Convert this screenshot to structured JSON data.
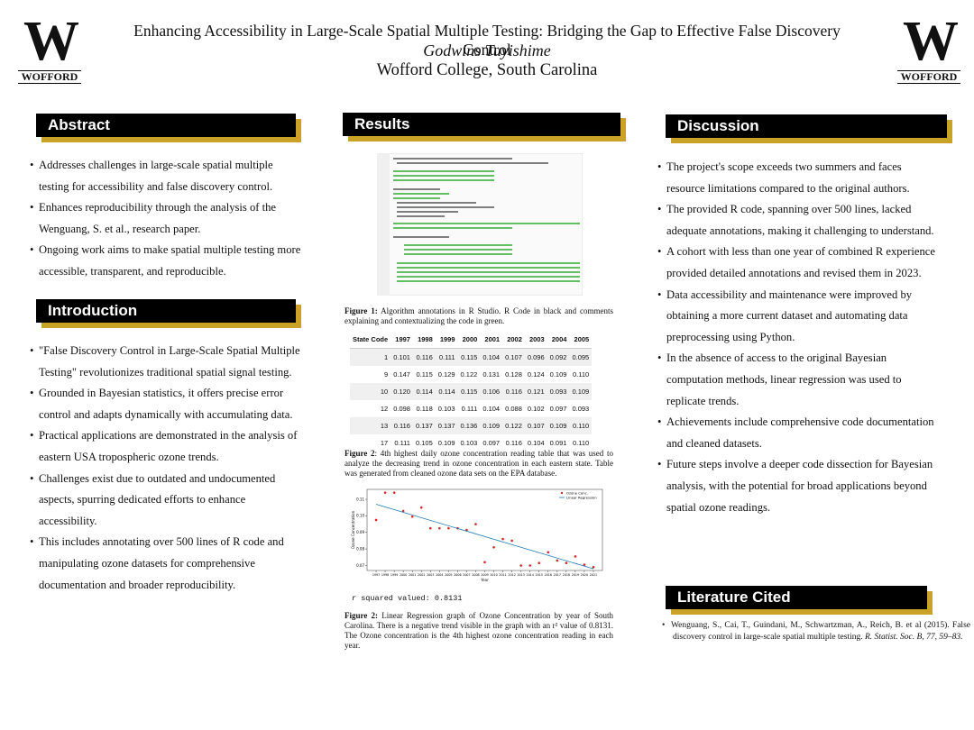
{
  "header": {
    "logo_letter": "W",
    "logo_name": "WOFFORD",
    "title": "Enhancing Accessibility in Large-Scale Spatial Multiple Testing: Bridging the Gap to Effective False Discovery Control",
    "author": "Godwins Tuyishime",
    "affiliation": "Wofford College, South Carolina"
  },
  "abstract": {
    "heading": "Abstract",
    "bullets": [
      "Addresses challenges in large-scale spatial multiple testing for accessibility and false discovery control.",
      "Enhances reproducibility through the analysis of the Wenguang, S. et al., research paper.",
      "Ongoing work aims to make spatial multiple testing more accessible, transparent, and reproducible."
    ]
  },
  "introduction": {
    "heading": "Introduction",
    "bullets": [
      "\"False Discovery Control in Large-Scale Spatial Multiple Testing\" revolutionizes traditional spatial signal testing.",
      "Grounded in Bayesian statistics, it offers precise error control and adapts dynamically with accumulating data.",
      "Practical applications are demonstrated in the analysis of eastern USA tropospheric ozone trends.",
      "Challenges exist due to outdated and undocumented aspects, spurring dedicated efforts to enhance accessibility.",
      "This includes annotating over 500 lines of R code and manipulating ozone datasets for comprehensive documentation and broader reproducibility."
    ]
  },
  "results": {
    "heading": "Results",
    "figure1_caption": {
      "label": "Figure 1:",
      "text": "Algorithm annotations in R Studio. R Code in black and comments explaining and contextualizing the code in green."
    },
    "table": {
      "header": [
        "State Code",
        "1997",
        "1998",
        "1999",
        "2000",
        "2001",
        "2002",
        "2003",
        "2004",
        "2005"
      ],
      "rows": [
        [
          "1",
          "0.101",
          "0.116",
          "0.111",
          "0.115",
          "0.104",
          "0.107",
          "0.096",
          "0.092",
          "0.095"
        ],
        [
          "9",
          "0.147",
          "0.115",
          "0.129",
          "0.122",
          "0.131",
          "0.128",
          "0.124",
          "0.109",
          "0.110"
        ],
        [
          "10",
          "0.120",
          "0.114",
          "0.114",
          "0.115",
          "0.106",
          "0.116",
          "0.121",
          "0.093",
          "0.109"
        ],
        [
          "12",
          "0.098",
          "0.118",
          "0.103",
          "0.111",
          "0.104",
          "0.088",
          "0.102",
          "0.097",
          "0.093"
        ],
        [
          "13",
          "0.116",
          "0.137",
          "0.137",
          "0.136",
          "0.109",
          "0.122",
          "0.107",
          "0.109",
          "0.110"
        ],
        [
          "17",
          "0.111",
          "0.105",
          "0.109",
          "0.103",
          "0.097",
          "0.116",
          "0.104",
          "0.091",
          "0.110"
        ]
      ]
    },
    "table_caption": {
      "label": "Figure 2",
      "text": ": 4th highest daily ozone concentration reading table that was used to analyze the decreasing trend in ozone concentration in each eastern state. Table was generated from cleaned ozone data sets on the EPA database."
    },
    "r_squared": "r squared valued: 0.8131",
    "figure2_caption": {
      "label": "Figure 2:",
      "text": "Linear Regression graph of  Ozone Concentration by year of South Carolina. There is a negative trend visible in the graph with an r² value of 0.8131. The Ozone concentration is the 4th highest ozone concentration reading in each year."
    }
  },
  "discussion": {
    "heading": "Discussion",
    "bullets": [
      "The project's scope exceeds two summers and faces resource limitations compared to the original authors.",
      "The provided R code, spanning over 500 lines, lacked adequate annotations, making it challenging to understand.",
      "A cohort with less than one year of combined R experience provided detailed annotations and revised them in 2023.",
      "Data accessibility and maintenance were improved by obtaining a more current dataset and automating data preprocessing using Python.",
      "In the absence of access to the original Bayesian computation methods, linear regression was used to replicate trends.",
      "Achievements include comprehensive code documentation and cleaned datasets.",
      "Future steps involve a deeper code dissection for Bayesian analysis, with the potential for broad applications beyond spatial ozone readings."
    ]
  },
  "literature": {
    "heading": "Literature Cited",
    "citation": "Wenguang, S., Cai, T.,  Guindani, M., Schwartzman, A., Reich, B. et al (2015). False discovery control in large-scale spatial multiple testing. ",
    "journal": "R. Statist. Soc. B, 77, 59–83."
  },
  "chart_data": {
    "type": "scatter",
    "xlabel": "Year",
    "ylabel": "Ozone Concentration",
    "x": [
      1997,
      1998,
      1999,
      2000,
      2001,
      2002,
      2003,
      2004,
      2005,
      2006,
      2007,
      2008,
      2009,
      2010,
      2011,
      2012,
      2013,
      2014,
      2015,
      2016,
      2017,
      2018,
      2019,
      2020,
      2021
    ],
    "series": [
      {
        "name": "Ozone Conc.",
        "color": "#d62728",
        "values": [
          0.0975,
          0.114,
          0.114,
          0.103,
          0.0995,
          0.105,
          0.0925,
          0.0925,
          0.0925,
          0.0925,
          0.0915,
          0.095,
          0.072,
          0.081,
          0.086,
          0.085,
          0.07,
          0.07,
          0.0715,
          0.078,
          0.073,
          0.0715,
          0.0755,
          0.0705,
          0.069
        ]
      },
      {
        "name": "Linear Regression",
        "color": "#1f77b4",
        "x": [
          1997,
          2021
        ],
        "values": [
          0.107,
          0.068
        ]
      }
    ],
    "xlim": [
      1996,
      2022
    ],
    "ylim": [
      0.067,
      0.116
    ],
    "xticks": [
      1997,
      1998,
      1999,
      2000,
      2001,
      2002,
      2003,
      2004,
      2005,
      2006,
      2007,
      2008,
      2009,
      2010,
      2011,
      2012,
      2013,
      2014,
      2015,
      2016,
      2017,
      2018,
      2019,
      2020,
      2021
    ],
    "yticks": [
      0.07,
      0.08,
      0.09,
      {
        "value": 0.1,
        "label": "0.10"
      },
      0.11
    ],
    "legend": "upper right"
  }
}
